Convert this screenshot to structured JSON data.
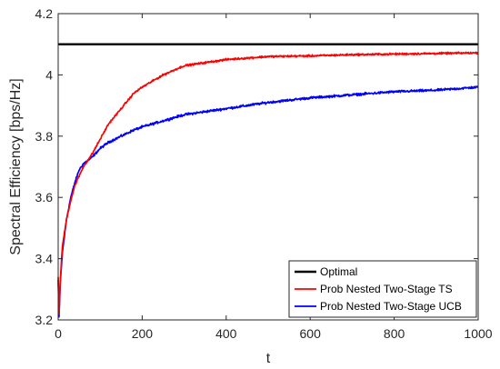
{
  "chart_data": {
    "type": "line",
    "xlabel": "t",
    "ylabel": "Spectral Efficiency [bps/Hz]",
    "xlim": [
      0,
      1000
    ],
    "ylim": [
      3.2,
      4.2
    ],
    "xticks": [
      0,
      200,
      400,
      600,
      800,
      1000
    ],
    "xtick_labels": [
      "0",
      "200",
      "400",
      "600",
      "800",
      "1000"
    ],
    "yticks": [
      3.2,
      3.4,
      3.6,
      3.8,
      4.0,
      4.2
    ],
    "ytick_labels": [
      "3.2",
      "3.4",
      "3.6",
      "3.8",
      "4",
      "4.2"
    ],
    "grid": false,
    "legend_position": "bottom-right",
    "series": [
      {
        "name": "Optimal",
        "color": "#000000",
        "x": [
          0,
          1000
        ],
        "y": [
          4.1,
          4.1
        ]
      },
      {
        "name": "Prob Nested Two-Stage TS",
        "color": "#ff0000",
        "x": [
          0,
          2,
          5,
          10,
          20,
          30,
          40,
          50,
          60,
          70,
          80,
          100,
          120,
          150,
          180,
          200,
          250,
          300,
          350,
          400,
          450,
          500,
          600,
          700,
          800,
          900,
          1000
        ],
        "y": [
          3.34,
          3.22,
          3.33,
          3.44,
          3.53,
          3.59,
          3.64,
          3.67,
          3.7,
          3.72,
          3.74,
          3.79,
          3.84,
          3.89,
          3.94,
          3.96,
          4.0,
          4.03,
          4.04,
          4.05,
          4.055,
          4.06,
          4.062,
          4.066,
          4.068,
          4.07,
          4.072
        ]
      },
      {
        "name": "Prob Nested Two-Stage UCB",
        "color": "#0000ff",
        "x": [
          0,
          2,
          5,
          10,
          20,
          30,
          40,
          50,
          60,
          70,
          80,
          100,
          120,
          150,
          180,
          200,
          250,
          300,
          350,
          400,
          450,
          500,
          600,
          700,
          800,
          900,
          1000
        ],
        "y": [
          3.33,
          3.21,
          3.32,
          3.42,
          3.53,
          3.6,
          3.65,
          3.69,
          3.71,
          3.72,
          3.73,
          3.76,
          3.78,
          3.8,
          3.82,
          3.83,
          3.85,
          3.87,
          3.88,
          3.89,
          3.9,
          3.91,
          3.925,
          3.935,
          3.945,
          3.95,
          3.96
        ]
      }
    ]
  }
}
